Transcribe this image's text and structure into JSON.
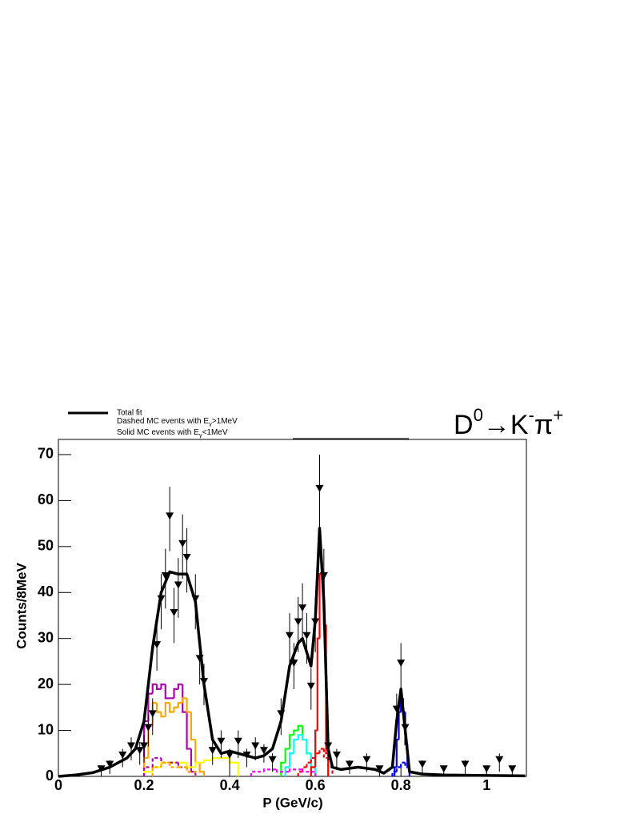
{
  "chart_data": {
    "type": "line",
    "title": [
      {
        "text": "D"
      },
      {
        "sup": "0"
      },
      {
        "text": "→K"
      },
      {
        "sup": "-"
      },
      {
        "text": "π"
      },
      {
        "sup": "+"
      }
    ],
    "legend_notes": [
      [
        {
          "text": "Dashed MC events with E"
        },
        {
          "sub": "γ"
        },
        {
          "text": ">1MeV"
        }
      ],
      [
        {
          "text": "Solid MC events with E"
        },
        {
          "sub": "γ"
        },
        {
          "text": "<1MeV"
        }
      ]
    ],
    "x_label": "P (GeV/c)",
    "y_label": "Counts/8MeV",
    "xlim": [
      0,
      1.093
    ],
    "ylim": [
      0,
      73.3
    ],
    "xticks": [
      0,
      0.2,
      0.4,
      0.6,
      0.8,
      1
    ],
    "yticks": [
      0,
      10,
      20,
      30,
      40,
      50,
      60,
      70
    ],
    "series": [
      {
        "name": "Total fit",
        "kind": "fit",
        "color": "#000000",
        "x": [
          0,
          0.04,
          0.08,
          0.12,
          0.16,
          0.18,
          0.2,
          0.22,
          0.24,
          0.26,
          0.28,
          0.3,
          0.32,
          0.34,
          0.36,
          0.38,
          0.4,
          0.42,
          0.44,
          0.46,
          0.48,
          0.5,
          0.52,
          0.54,
          0.56,
          0.57,
          0.58,
          0.59,
          0.6,
          0.61,
          0.62,
          0.63,
          0.64,
          0.66,
          0.7,
          0.74,
          0.76,
          0.78,
          0.79,
          0.8,
          0.81,
          0.82,
          0.85,
          0.9,
          1.0,
          1.09
        ],
        "values": [
          0,
          0.3,
          0.8,
          2,
          4,
          6,
          12,
          28,
          40,
          44.5,
          44,
          44,
          38,
          20,
          8,
          5,
          5.5,
          5,
          4.5,
          4,
          4.5,
          6,
          12,
          24,
          29,
          30,
          27,
          24,
          34,
          54,
          38,
          6,
          2,
          1.5,
          2,
          1.5,
          0.7,
          2,
          12,
          19,
          10,
          1,
          0.5,
          0.3,
          0.2,
          0.1
        ]
      },
      {
        "kind": "data",
        "color": "#000000",
        "x": [
          0.1,
          0.12,
          0.15,
          0.17,
          0.19,
          0.2,
          0.21,
          0.22,
          0.23,
          0.24,
          0.25,
          0.26,
          0.27,
          0.28,
          0.29,
          0.3,
          0.32,
          0.33,
          0.34,
          0.36,
          0.38,
          0.4,
          0.42,
          0.44,
          0.46,
          0.48,
          0.5,
          0.52,
          0.54,
          0.55,
          0.56,
          0.57,
          0.58,
          0.59,
          0.6,
          0.61,
          0.62,
          0.63,
          0.65,
          0.68,
          0.72,
          0.75,
          0.79,
          0.8,
          0.81,
          0.85,
          0.9,
          0.95,
          1.0,
          1.03,
          1.06
        ],
        "values": [
          1,
          2,
          4,
          6,
          5,
          6,
          10,
          13,
          28,
          38,
          43,
          56,
          35,
          41,
          50,
          47,
          38,
          25,
          20,
          5,
          7,
          4,
          7,
          4,
          6,
          5,
          3,
          13,
          30,
          24,
          33,
          36,
          30,
          19,
          33,
          62,
          43,
          6,
          4,
          2,
          3,
          1,
          14,
          24,
          10,
          2,
          1,
          2,
          1,
          3,
          1
        ],
        "errors": [
          1,
          1.5,
          2,
          2.5,
          2.5,
          3,
          3.5,
          4,
          5,
          6,
          6.5,
          7,
          6,
          6.5,
          7,
          7,
          6,
          5,
          4.5,
          2.5,
          3,
          2,
          3,
          2,
          2.5,
          2,
          2,
          4,
          5.5,
          5,
          6,
          6,
          5.5,
          4.5,
          6,
          8,
          6.5,
          2.5,
          2,
          1.5,
          2,
          1,
          4,
          5,
          3,
          1.5,
          1,
          1.5,
          1,
          2,
          1
        ]
      },
      {
        "kind": "hist",
        "dashed": false,
        "color": "#b000b0",
        "bins": [
          0.2,
          0.21,
          0.22,
          0.23,
          0.24,
          0.25,
          0.26,
          0.27,
          0.28,
          0.29,
          0.3,
          0.31,
          0.32
        ],
        "values": [
          12,
          18,
          20,
          19,
          20,
          17,
          17,
          19,
          20,
          14,
          6,
          1
        ]
      },
      {
        "kind": "hist",
        "dashed": false,
        "color": "#ffa500",
        "bins": [
          0.2,
          0.21,
          0.22,
          0.23,
          0.24,
          0.25,
          0.26,
          0.27,
          0.28,
          0.29,
          0.3,
          0.31,
          0.32,
          0.33,
          0.34
        ],
        "values": [
          4,
          11,
          16,
          14,
          13,
          16,
          14,
          15,
          16,
          17,
          14,
          8,
          3,
          1
        ]
      },
      {
        "kind": "hist",
        "dashed": false,
        "color": "#ffff00",
        "bins": [
          0.2,
          0.22,
          0.24,
          0.26,
          0.28,
          0.3,
          0.32,
          0.34,
          0.36,
          0.38,
          0.4,
          0.42
        ],
        "values": [
          1,
          2,
          3,
          3,
          3,
          2,
          3,
          3.5,
          4,
          4,
          3
        ]
      },
      {
        "kind": "hist",
        "dashed": true,
        "color": "#b000b0",
        "bins": [
          0.2,
          0.22,
          0.24,
          0.26,
          0.28,
          0.3,
          0.32
        ],
        "values": [
          2,
          4,
          3,
          3,
          2,
          1
        ]
      },
      {
        "kind": "hist",
        "dashed": true,
        "color": "#ffa500",
        "bins": [
          0.22,
          0.24,
          0.26,
          0.28,
          0.3,
          0.32
        ],
        "values": [
          2,
          3,
          2,
          2,
          1
        ]
      },
      {
        "kind": "hist",
        "dashed": false,
        "color": "#00ff00",
        "bins": [
          0.52,
          0.53,
          0.54,
          0.55,
          0.56,
          0.57,
          0.58,
          0.59,
          0.6
        ],
        "values": [
          3,
          6,
          9,
          10,
          11,
          8,
          5,
          2
        ]
      },
      {
        "kind": "hist",
        "dashed": false,
        "color": "#00ffff",
        "bins": [
          0.53,
          0.54,
          0.55,
          0.56,
          0.57,
          0.58,
          0.59,
          0.6
        ],
        "values": [
          2,
          5,
          8,
          9,
          8,
          5,
          2
        ]
      },
      {
        "kind": "hist",
        "dashed": true,
        "color": "#ff0000",
        "bins": [
          0.56,
          0.57,
          0.58,
          0.59,
          0.6,
          0.61,
          0.62,
          0.63,
          0.64
        ],
        "values": [
          1,
          2,
          3,
          4,
          5,
          6,
          4,
          2
        ]
      },
      {
        "kind": "hist",
        "dashed": true,
        "color": "#ff00ff",
        "bins": [
          0.45,
          0.48,
          0.51,
          0.54,
          0.57,
          0.6
        ],
        "values": [
          1,
          1.5,
          1,
          1.5,
          1
        ]
      },
      {
        "kind": "hist",
        "dashed": false,
        "color": "#ff0000",
        "bins": [
          0.59,
          0.6,
          0.605,
          0.61,
          0.62,
          0.625,
          0.63
        ],
        "values": [
          2,
          10,
          30,
          44,
          33,
          5
        ]
      },
      {
        "kind": "hist",
        "dashed": false,
        "color": "#0000ff",
        "bins": [
          0.785,
          0.79,
          0.795,
          0.8,
          0.805,
          0.81,
          0.815,
          0.82
        ],
        "values": [
          2,
          8,
          14,
          17,
          14,
          7,
          2
        ]
      },
      {
        "kind": "hist",
        "dashed": true,
        "color": "#0000ff",
        "bins": [
          0.78,
          0.79,
          0.8,
          0.81,
          0.82
        ],
        "values": [
          1,
          2,
          3,
          2
        ]
      }
    ]
  }
}
